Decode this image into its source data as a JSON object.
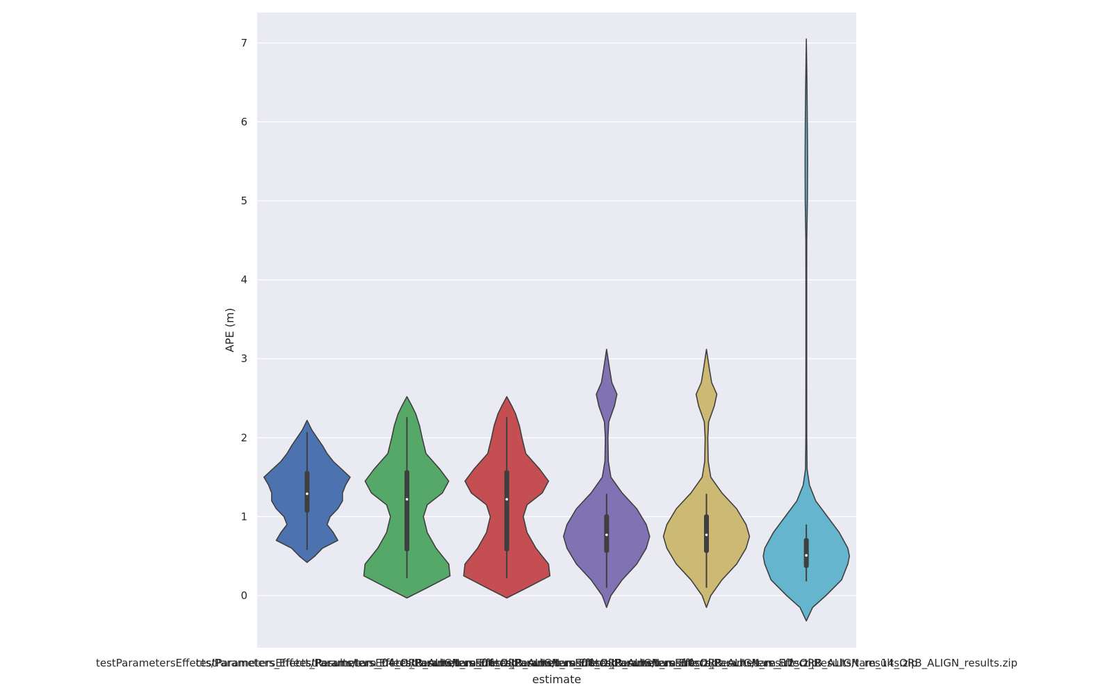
{
  "chart_data": {
    "type": "violin",
    "xlabel": "estimate",
    "ylabel": "APE (m)",
    "ylim": [
      -0.65,
      7.4
    ],
    "yticks": [
      0,
      1,
      2,
      3,
      4,
      5,
      6,
      7
    ],
    "grid": true,
    "background": "#eaeaf2",
    "series": [
      {
        "name": "testParametersEffects/Parameters_Effect_Results/tam_04_ORB_ALIGN_results.zip",
        "color": "#4c72b0",
        "min": 0.58,
        "q1": 1.05,
        "median": 1.29,
        "q3": 1.58,
        "max": 2.07,
        "extent": [
          0.42,
          2.22
        ],
        "density": [
          [
            0.42,
            0
          ],
          [
            0.5,
            0.1
          ],
          [
            0.6,
            0.2
          ],
          [
            0.7,
            0.4
          ],
          [
            0.8,
            0.34
          ],
          [
            0.9,
            0.26
          ],
          [
            1.0,
            0.3
          ],
          [
            1.1,
            0.4
          ],
          [
            1.2,
            0.46
          ],
          [
            1.3,
            0.46
          ],
          [
            1.4,
            0.5
          ],
          [
            1.5,
            0.56
          ],
          [
            1.6,
            0.45
          ],
          [
            1.7,
            0.34
          ],
          [
            1.8,
            0.26
          ],
          [
            1.9,
            0.2
          ],
          [
            2.0,
            0.13
          ],
          [
            2.1,
            0.06
          ],
          [
            2.22,
            0
          ]
        ]
      },
      {
        "name": "testParametersEffects/Parameters_Effect_Results/tam_06_ORB_ALIGN_results.zip",
        "color": "#55a868",
        "min": 0.22,
        "q1": 0.56,
        "median": 1.22,
        "q3": 1.59,
        "max": 2.26,
        "extent": [
          -0.03,
          2.52
        ],
        "density": [
          [
            -0.03,
            0
          ],
          [
            0.1,
            0.16
          ],
          [
            0.25,
            0.34
          ],
          [
            0.4,
            0.33
          ],
          [
            0.6,
            0.23
          ],
          [
            0.8,
            0.16
          ],
          [
            1.0,
            0.13
          ],
          [
            1.15,
            0.16
          ],
          [
            1.3,
            0.28
          ],
          [
            1.45,
            0.33
          ],
          [
            1.6,
            0.26
          ],
          [
            1.8,
            0.15
          ],
          [
            2.0,
            0.12
          ],
          [
            2.15,
            0.1
          ],
          [
            2.3,
            0.07
          ],
          [
            2.4,
            0.04
          ],
          [
            2.52,
            0
          ]
        ]
      },
      {
        "name": "testParametersEffects/Parameters_Effect_Results/tam_08_ORB_ALIGN_results.zip",
        "color": "#c44e52",
        "min": 0.22,
        "q1": 0.56,
        "median": 1.22,
        "q3": 1.59,
        "max": 2.26,
        "extent": [
          -0.03,
          2.52
        ],
        "density": [
          [
            -0.03,
            0
          ],
          [
            0.1,
            0.16
          ],
          [
            0.25,
            0.34
          ],
          [
            0.4,
            0.33
          ],
          [
            0.6,
            0.23
          ],
          [
            0.8,
            0.16
          ],
          [
            1.0,
            0.13
          ],
          [
            1.15,
            0.16
          ],
          [
            1.3,
            0.28
          ],
          [
            1.45,
            0.33
          ],
          [
            1.6,
            0.26
          ],
          [
            1.8,
            0.15
          ],
          [
            2.0,
            0.12
          ],
          [
            2.15,
            0.1
          ],
          [
            2.3,
            0.07
          ],
          [
            2.4,
            0.04
          ],
          [
            2.52,
            0
          ]
        ]
      },
      {
        "name": "testParametersEffects/Parameters_Effect_Results/tam_10_ORB_ALIGN_results.zip",
        "color": "#8172b3",
        "min": 0.1,
        "q1": 0.54,
        "median": 0.77,
        "q3": 1.03,
        "max": 1.29,
        "extent": [
          -0.15,
          3.12
        ],
        "density": [
          [
            -0.15,
            0
          ],
          [
            0.0,
            0.05
          ],
          [
            0.2,
            0.18
          ],
          [
            0.4,
            0.35
          ],
          [
            0.6,
            0.46
          ],
          [
            0.75,
            0.5
          ],
          [
            0.9,
            0.46
          ],
          [
            1.1,
            0.35
          ],
          [
            1.3,
            0.18
          ],
          [
            1.5,
            0.05
          ],
          [
            1.7,
            0.02
          ],
          [
            2.0,
            0.015
          ],
          [
            2.2,
            0.025
          ],
          [
            2.4,
            0.09
          ],
          [
            2.55,
            0.12
          ],
          [
            2.7,
            0.06
          ],
          [
            2.9,
            0.03
          ],
          [
            3.12,
            0
          ]
        ]
      },
      {
        "name": "testParametersEffects/Parameters_Effect_Results/tam_12_ORB_ALIGN_results.zip",
        "color": "#ccb974",
        "min": 0.1,
        "q1": 0.54,
        "median": 0.77,
        "q3": 1.03,
        "max": 1.29,
        "extent": [
          -0.15,
          3.12
        ],
        "density": [
          [
            -0.15,
            0
          ],
          [
            0.0,
            0.05
          ],
          [
            0.2,
            0.18
          ],
          [
            0.4,
            0.35
          ],
          [
            0.6,
            0.46
          ],
          [
            0.75,
            0.5
          ],
          [
            0.9,
            0.46
          ],
          [
            1.1,
            0.35
          ],
          [
            1.3,
            0.18
          ],
          [
            1.5,
            0.05
          ],
          [
            1.7,
            0.02
          ],
          [
            2.0,
            0.015
          ],
          [
            2.2,
            0.025
          ],
          [
            2.4,
            0.09
          ],
          [
            2.55,
            0.12
          ],
          [
            2.7,
            0.06
          ],
          [
            2.9,
            0.03
          ],
          [
            3.12,
            0
          ]
        ]
      },
      {
        "name": "testParametersEffects/Parameters_Effect_Results/tam_14_ORB_ALIGN_results.zip",
        "color": "#64b5cd",
        "min": 0.18,
        "q1": 0.35,
        "median": 0.51,
        "q3": 0.73,
        "max": 0.9,
        "extent": [
          -0.32,
          7.05
        ],
        "density": [
          [
            -0.32,
            0
          ],
          [
            -0.15,
            0.08
          ],
          [
            0.0,
            0.25
          ],
          [
            0.2,
            0.45
          ],
          [
            0.4,
            0.53
          ],
          [
            0.5,
            0.55
          ],
          [
            0.6,
            0.53
          ],
          [
            0.8,
            0.42
          ],
          [
            1.0,
            0.27
          ],
          [
            1.2,
            0.12
          ],
          [
            1.4,
            0.04
          ],
          [
            1.6,
            0.01
          ],
          [
            2.0,
            0.006
          ],
          [
            3.0,
            0.005
          ],
          [
            4.0,
            0.005
          ],
          [
            4.5,
            0.006
          ],
          [
            5.0,
            0.014
          ],
          [
            5.5,
            0.016
          ],
          [
            6.0,
            0.013
          ],
          [
            6.5,
            0.008
          ],
          [
            7.05,
            0
          ]
        ]
      }
    ]
  }
}
